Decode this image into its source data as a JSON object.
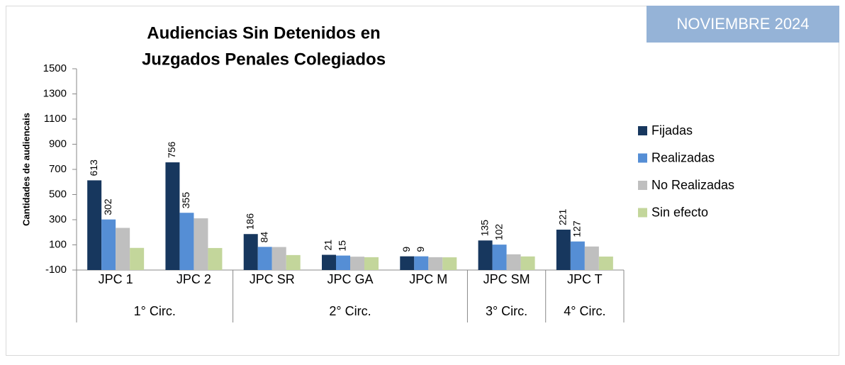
{
  "chart_data": {
    "type": "bar",
    "title": [
      "Audiencias Sin Detenidos en",
      "Juzgados Penales Colegiados"
    ],
    "badge": "NOVIEMBRE 2024",
    "y_axis_label": "Cantidades de audiencais",
    "categories": [
      "JPC 1",
      "JPC 2",
      "JPC SR",
      "JPC GA",
      "JPC M",
      "JPC SM",
      "JPC T"
    ],
    "groups": [
      {
        "label": "1° Circ.",
        "count": 2
      },
      {
        "label": "2° Circ.",
        "count": 3
      },
      {
        "label": "3° Circ.",
        "count": 1
      },
      {
        "label": "4° Circ.",
        "count": 1
      }
    ],
    "series": [
      {
        "name": "Fijadas",
        "color": "#17375e",
        "show_labels": true,
        "values": [
          613,
          756,
          186,
          21,
          9,
          135,
          221
        ]
      },
      {
        "name": "Realizadas",
        "color": "#558ed5",
        "show_labels": true,
        "values": [
          302,
          355,
          84,
          15,
          9,
          102,
          127
        ]
      },
      {
        "name": "No Realizadas",
        "color": "#bfbfbf",
        "show_labels": false,
        "values": [
          235,
          311,
          83,
          6,
          2,
          25,
          87
        ]
      },
      {
        "name": "Sin efecto",
        "color": "#c3d69b",
        "show_labels": false,
        "values": [
          76,
          75,
          19,
          2,
          1,
          8,
          7
        ]
      }
    ],
    "ylim": [
      -100,
      1500
    ],
    "yticks": [
      -100,
      100,
      300,
      500,
      700,
      900,
      1100,
      1300,
      1500
    ],
    "legend": "right"
  }
}
